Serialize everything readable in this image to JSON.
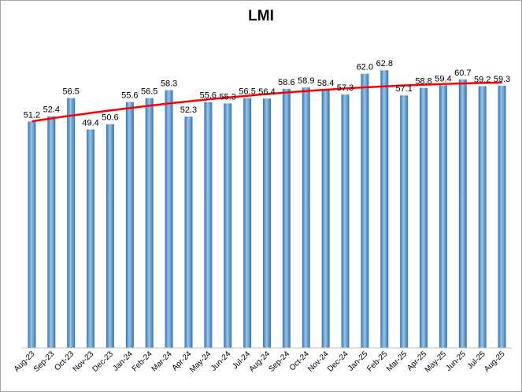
{
  "chart_data": {
    "type": "bar",
    "title": "LMI",
    "xlabel": "",
    "ylabel": "",
    "ylim": [
      0,
      68
    ],
    "grid": false,
    "legend": "none",
    "categories": [
      "Aug-23",
      "Sep-23",
      "Oct-23",
      "Nov-23",
      "Dec-23",
      "Jan-24",
      "Feb-24",
      "Mar-24",
      "Apr-24",
      "May-24",
      "Jun-24",
      "Jul-24",
      "Aug-24",
      "Sep-24",
      "Oct-24",
      "Nov-24",
      "Dec-24",
      "Jan-25",
      "Feb-25",
      "Mar-25",
      "Apr-25",
      "May-25",
      "Jun-25",
      "Jul-25",
      "Aug-25"
    ],
    "values": [
      51.2,
      52.4,
      56.5,
      49.4,
      50.6,
      55.6,
      56.5,
      58.3,
      52.3,
      55.6,
      55.3,
      56.5,
      56.4,
      58.6,
      58.9,
      58.4,
      57.3,
      62.0,
      62.8,
      57.1,
      58.8,
      59.4,
      60.7,
      59.2,
      59.3
    ],
    "value_labels": [
      "51.2",
      "52.4",
      "56.5",
      "49.4",
      "50.6",
      "55.6",
      "56.5",
      "58.3",
      "52.3",
      "55.6",
      "55.3",
      "56.5",
      "56.4",
      "58.6",
      "58.9",
      "58.4",
      "57.3",
      "62.0",
      "62.8",
      "57.1",
      "58.8",
      "59.4",
      "60.7",
      "59.2",
      "59.3"
    ],
    "trendline": {
      "type": "polynomial",
      "color": "#ff0000"
    },
    "colors": {
      "bar": "#5b9bd5",
      "bar_dark": "#2e75b6",
      "bar_light": "#9dc3e6",
      "trend": "#ff0000",
      "border": "#a6a6a6"
    }
  }
}
